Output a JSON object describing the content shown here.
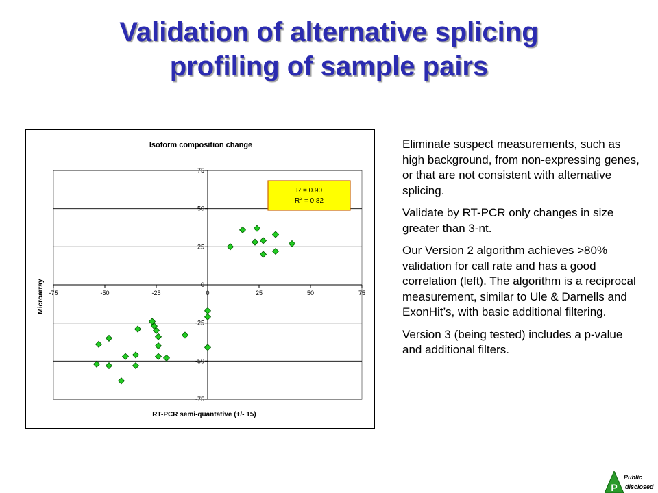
{
  "slide": {
    "title_lines": [
      "Validation of alternative splicing",
      "profiling of sample pairs"
    ]
  },
  "body_text": [
    "Eliminate suspect measurements, such as high background, from non-expressing genes, or that are not consistent with alternative splicing.",
    "Validate by RT-PCR only changes in size greater than 3-nt.",
    "Our Version 2 algorithm achieves >80% validation for call rate and has a good correlation (left).  The algorithm is a reciprocal measurement, similar to Ule & Darnells and ExonHit’s, with basic additional filtering.",
    "Version 3 (being tested) includes a p-value and additional filters."
  ],
  "chart_data": {
    "type": "scatter",
    "title": "Isoform composition change",
    "xlabel": "RT-PCR semi-quantative (+/- 15)",
    "ylabel": "Microarray",
    "xlim": [
      -75,
      75
    ],
    "ylim": [
      -75,
      75
    ],
    "x_ticks": [
      -75,
      -50,
      -25,
      0,
      25,
      50,
      75
    ],
    "y_ticks": [
      75,
      50,
      25,
      0,
      -25,
      -50,
      -75
    ],
    "grid": "horizontal",
    "marker_color": "#22cc22",
    "annotation": {
      "line1": "R = 0.90",
      "line2_base": "R",
      "line2_sup": "2",
      "line2_rest": " = 0.82"
    },
    "points": [
      {
        "x": 11,
        "y": 25
      },
      {
        "x": 17,
        "y": 36
      },
      {
        "x": 23,
        "y": 28
      },
      {
        "x": 24,
        "y": 37
      },
      {
        "x": 27,
        "y": 29
      },
      {
        "x": 27,
        "y": 20
      },
      {
        "x": 33,
        "y": 33
      },
      {
        "x": 33,
        "y": 22
      },
      {
        "x": 41,
        "y": 27
      },
      {
        "x": 0,
        "y": -17
      },
      {
        "x": 0,
        "y": -21
      },
      {
        "x": 0,
        "y": -41
      },
      {
        "x": -11,
        "y": -33
      },
      {
        "x": -20,
        "y": -48
      },
      {
        "x": -24,
        "y": -34
      },
      {
        "x": -24,
        "y": -40
      },
      {
        "x": -24,
        "y": -47
      },
      {
        "x": -25,
        "y": -30
      },
      {
        "x": -26,
        "y": -27
      },
      {
        "x": -27,
        "y": -24
      },
      {
        "x": -34,
        "y": -29
      },
      {
        "x": -35,
        "y": -46
      },
      {
        "x": -35,
        "y": -53
      },
      {
        "x": -40,
        "y": -47
      },
      {
        "x": -42,
        "y": -63
      },
      {
        "x": -48,
        "y": -35
      },
      {
        "x": -48,
        "y": -53
      },
      {
        "x": -53,
        "y": -39
      },
      {
        "x": -54,
        "y": -52
      }
    ]
  },
  "logo": {
    "letter": "P",
    "word1": "Public",
    "word2": "disclosed"
  },
  "colors": {
    "title": "#2b2bb0",
    "annotation_bg": "#ffff00",
    "annotation_border": "#cc6600",
    "logo_green": "#2a9a2a"
  }
}
